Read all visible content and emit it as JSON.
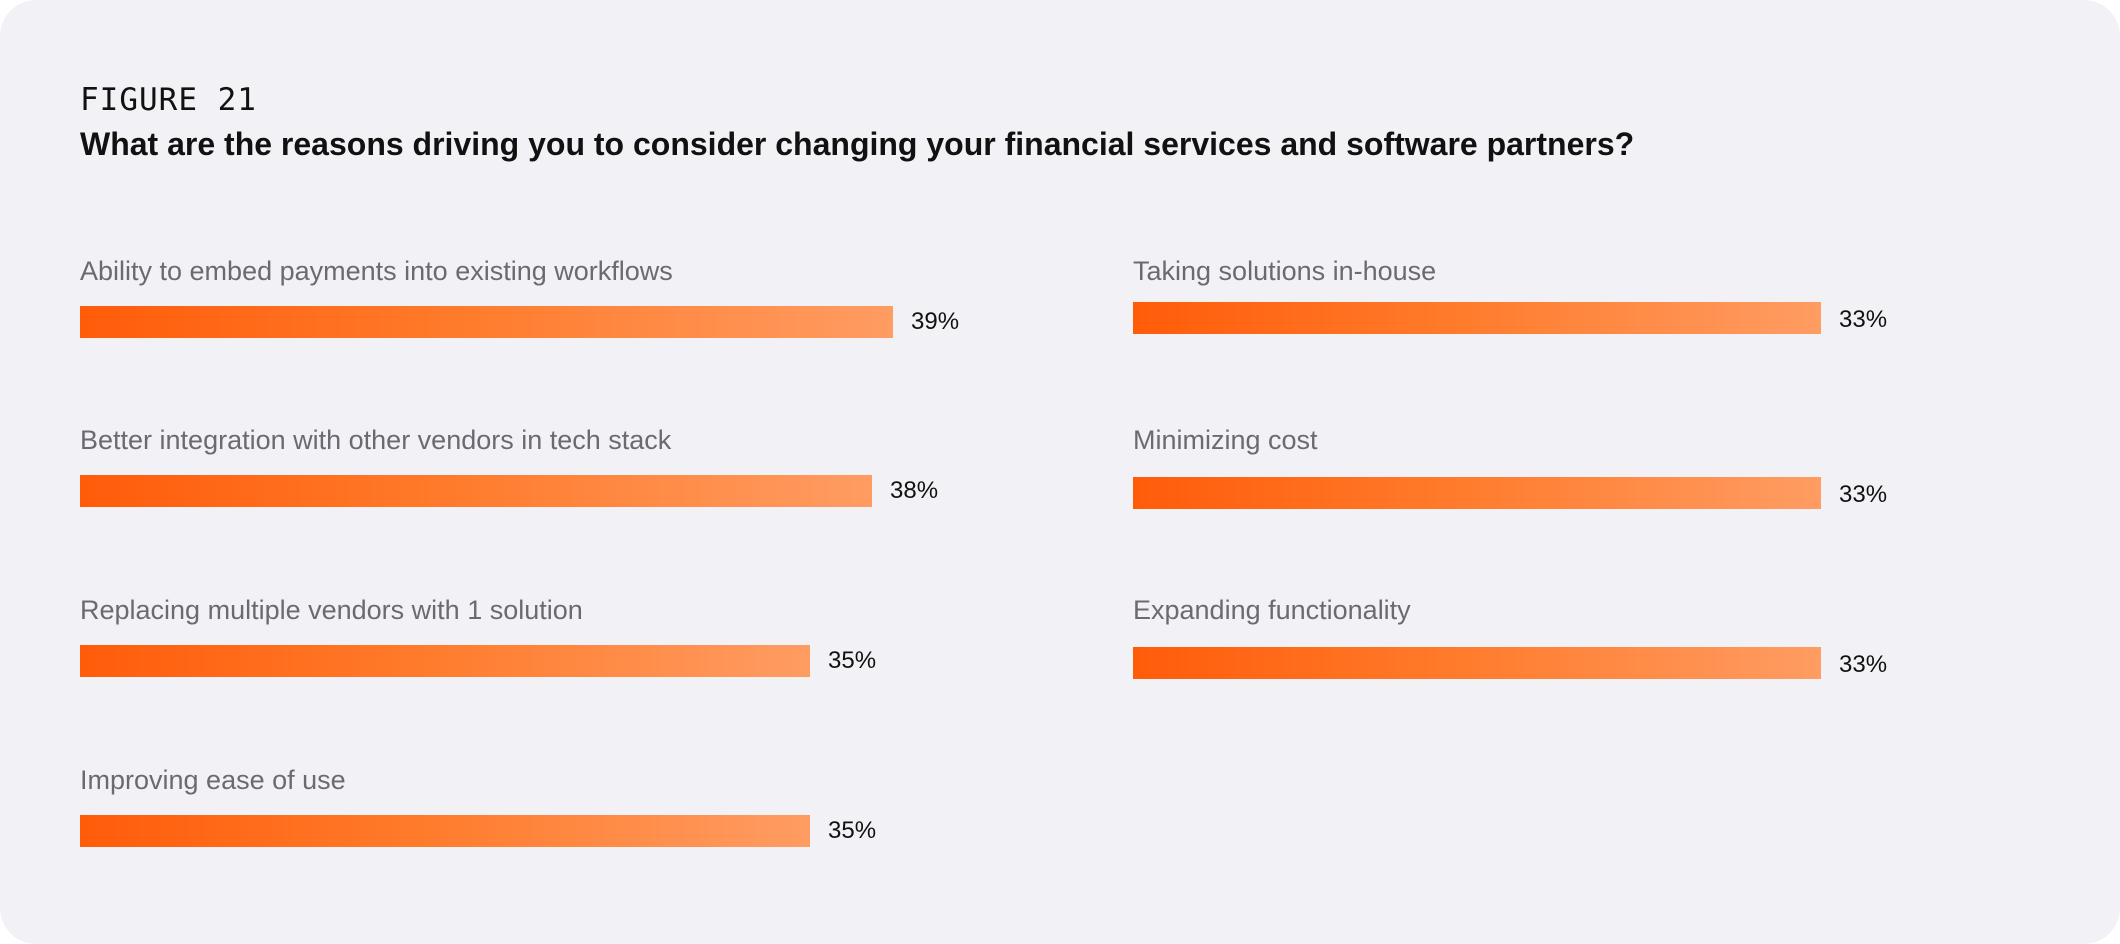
{
  "figure": {
    "label": "FIGURE 21",
    "title": "What are the reasons driving you to consider changing your financial services and software partners?"
  },
  "colors": {
    "background": "#f2f1f6",
    "bar_start": "#ff5c0a",
    "bar_end": "#ff9c62",
    "label_text": "#6b6a72",
    "value_text": "#111111"
  },
  "chart_data": {
    "type": "bar",
    "orientation": "horizontal",
    "title": "What are the reasons driving you to consider changing your financial services and software partners?",
    "unit": "%",
    "categories": [
      "Ability to embed payments into existing workflows",
      "Better integration with other vendors in tech stack",
      "Replacing multiple vendors with 1 solution",
      "Improving ease of use",
      "Taking solutions in-house",
      "Minimizing cost",
      "Expanding functionality"
    ],
    "values": [
      39,
      38,
      35,
      35,
      33,
      33,
      33
    ],
    "value_labels": [
      "39%",
      "38%",
      "35%",
      "35%",
      "33%",
      "33%",
      "33%"
    ],
    "columns": 2
  }
}
